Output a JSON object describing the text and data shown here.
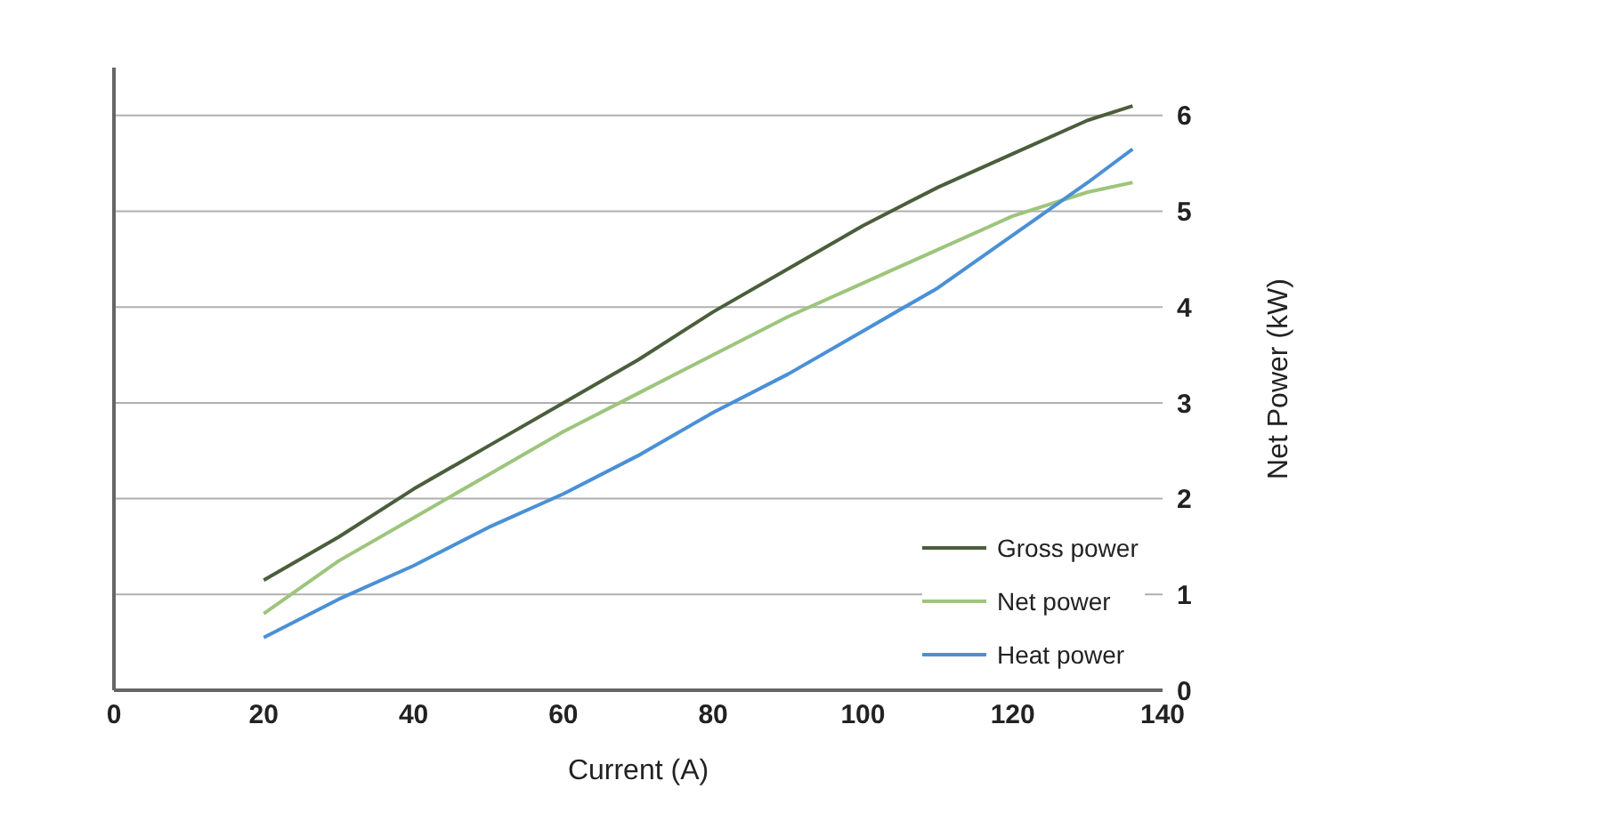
{
  "chart_data": {
    "type": "line",
    "xlabel": "Current (A)",
    "ylabel": "Net Power (kW)",
    "x": [
      20,
      30,
      40,
      50,
      60,
      70,
      80,
      90,
      100,
      110,
      120,
      130,
      136
    ],
    "series": [
      {
        "name": "Gross power",
        "color": "#4b5e3c",
        "values": [
          1.15,
          1.6,
          2.1,
          2.55,
          3.0,
          3.45,
          3.95,
          4.4,
          4.85,
          5.25,
          5.6,
          5.95,
          6.1
        ]
      },
      {
        "name": "Net power",
        "color": "#9dc57c",
        "values": [
          0.8,
          1.35,
          1.8,
          2.25,
          2.7,
          3.1,
          3.5,
          3.9,
          4.25,
          4.6,
          4.95,
          5.2,
          5.3
        ]
      },
      {
        "name": "Heat power",
        "color": "#4a90d6",
        "values": [
          0.55,
          0.95,
          1.3,
          1.7,
          2.05,
          2.45,
          2.9,
          3.3,
          3.75,
          4.2,
          4.75,
          5.3,
          5.65
        ]
      }
    ],
    "xlim": [
      0,
      140
    ],
    "xticks": [
      0,
      20,
      40,
      60,
      80,
      100,
      120,
      140
    ],
    "ylim": [
      0,
      6.5
    ],
    "yticks": [
      0,
      1,
      2,
      3,
      4,
      5,
      6
    ],
    "grid": "y",
    "legend": "bottom right",
    "marker": "none",
    "line_style": "solid"
  }
}
